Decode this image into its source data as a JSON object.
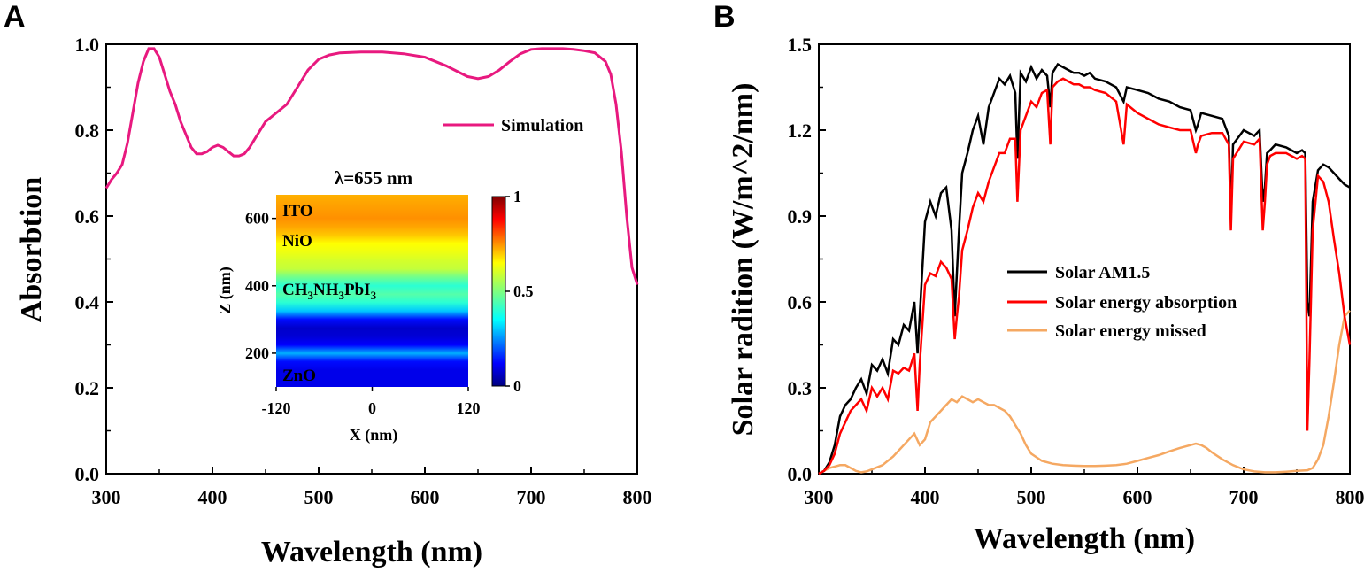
{
  "panel_a_letter": "A",
  "panel_b_letter": "B",
  "chart_data": [
    {
      "type": "line",
      "panel": "A",
      "xlabel": "Wavelength (nm)",
      "ylabel": "Absorbtion",
      "xlim": [
        300,
        800
      ],
      "ylim": [
        0.0,
        1.0
      ],
      "xticks": [
        300,
        400,
        500,
        600,
        700,
        800
      ],
      "xtick_labels": [
        "300",
        "400",
        "500",
        "600",
        "700",
        "800"
      ],
      "yticks": [
        0.0,
        0.2,
        0.4,
        0.6,
        0.8,
        1.0
      ],
      "ytick_labels": [
        "0.0",
        "0.2",
        "0.4",
        "0.6",
        "0.8",
        "1.0"
      ],
      "legend_position": "right",
      "series": [
        {
          "name": "Simulation",
          "color": "#e8197f",
          "x": [
            300,
            305,
            310,
            315,
            320,
            325,
            330,
            335,
            340,
            345,
            350,
            355,
            360,
            365,
            370,
            375,
            380,
            385,
            390,
            395,
            400,
            405,
            410,
            415,
            420,
            425,
            430,
            435,
            440,
            445,
            450,
            455,
            460,
            470,
            480,
            490,
            500,
            510,
            520,
            530,
            540,
            560,
            580,
            600,
            620,
            640,
            650,
            660,
            670,
            680,
            690,
            700,
            710,
            720,
            730,
            740,
            750,
            760,
            770,
            775,
            780,
            785,
            790,
            795,
            800
          ],
          "y": [
            0.665,
            0.685,
            0.7,
            0.72,
            0.77,
            0.84,
            0.91,
            0.96,
            0.99,
            0.99,
            0.97,
            0.93,
            0.89,
            0.86,
            0.82,
            0.79,
            0.76,
            0.745,
            0.745,
            0.75,
            0.76,
            0.765,
            0.76,
            0.75,
            0.74,
            0.74,
            0.745,
            0.76,
            0.78,
            0.8,
            0.82,
            0.83,
            0.84,
            0.86,
            0.9,
            0.94,
            0.965,
            0.975,
            0.98,
            0.981,
            0.982,
            0.982,
            0.978,
            0.97,
            0.95,
            0.925,
            0.92,
            0.925,
            0.94,
            0.96,
            0.978,
            0.988,
            0.99,
            0.99,
            0.99,
            0.988,
            0.985,
            0.98,
            0.96,
            0.93,
            0.86,
            0.75,
            0.6,
            0.48,
            0.44
          ]
        }
      ]
    },
    {
      "type": "heatmap",
      "panel": "A-inset",
      "title": "λ=655 nm",
      "xlabel": "X (nm)",
      "ylabel": "Z (nm)",
      "xlim": [
        -120,
        120
      ],
      "ylim": [
        100,
        670
      ],
      "xtick_labels": [
        "-120",
        "0",
        "120"
      ],
      "xticks": [
        -120,
        0,
        120
      ],
      "ytick_labels": [
        "200",
        "400",
        "600"
      ],
      "yticks": [
        200,
        400,
        600
      ],
      "colorbar_ticks": [
        0,
        0.5,
        1
      ],
      "colorbar_labels": [
        "0",
        "0.5",
        "1"
      ],
      "layers": [
        "ITO",
        "NiO",
        "CH3NH3PbI3",
        "ZnO"
      ],
      "layer_z": [
        640,
        575,
        410,
        118
      ],
      "profile_z": [
        100,
        125,
        150,
        175,
        200,
        225,
        250,
        275,
        300,
        325,
        350,
        375,
        400,
        425,
        450,
        475,
        500,
        525,
        550,
        575,
        600,
        625,
        650,
        670
      ],
      "profile_value": [
        0.1,
        0.1,
        0.1,
        0.13,
        0.28,
        0.12,
        0.08,
        0.07,
        0.13,
        0.3,
        0.4,
        0.45,
        0.4,
        0.48,
        0.58,
        0.6,
        0.63,
        0.65,
        0.7,
        0.73,
        0.75,
        0.74,
        0.73,
        0.72
      ]
    },
    {
      "type": "line",
      "panel": "B",
      "xlabel": "Wavelength (nm)",
      "ylabel": "Solar radition (W/m^2/nm)",
      "xlim": [
        300,
        800
      ],
      "ylim": [
        0.0,
        1.5
      ],
      "xticks": [
        300,
        400,
        500,
        600,
        700,
        800
      ],
      "xtick_labels": [
        "300",
        "400",
        "500",
        "600",
        "700",
        "800"
      ],
      "yticks": [
        0.0,
        0.3,
        0.6,
        0.9,
        1.2,
        1.5
      ],
      "ytick_labels": [
        "0.0",
        "0.3",
        "0.6",
        "0.9",
        "1.2",
        "1.5"
      ],
      "legend_position": "center-right",
      "series": [
        {
          "name": "Solar AM1.5",
          "color": "#000000",
          "x": [
            300,
            305,
            310,
            315,
            320,
            325,
            330,
            335,
            340,
            345,
            350,
            355,
            360,
            365,
            370,
            375,
            380,
            385,
            390,
            393,
            395,
            400,
            405,
            410,
            415,
            420,
            425,
            428,
            430,
            432,
            435,
            440,
            445,
            450,
            455,
            460,
            465,
            470,
            475,
            480,
            485,
            487,
            490,
            495,
            500,
            505,
            510,
            515,
            518,
            520,
            525,
            530,
            535,
            540,
            545,
            550,
            555,
            560,
            570,
            580,
            587,
            590,
            600,
            610,
            620,
            630,
            640,
            650,
            655,
            657,
            660,
            670,
            680,
            686,
            688,
            690,
            700,
            710,
            715,
            718,
            720,
            722,
            725,
            730,
            740,
            750,
            755,
            758,
            760,
            762,
            765,
            770,
            775,
            780,
            785,
            790,
            795,
            800
          ],
          "y": [
            0.0,
            0.01,
            0.04,
            0.1,
            0.2,
            0.24,
            0.26,
            0.3,
            0.33,
            0.28,
            0.38,
            0.36,
            0.4,
            0.35,
            0.47,
            0.45,
            0.52,
            0.5,
            0.6,
            0.42,
            0.55,
            0.88,
            0.95,
            0.9,
            0.98,
            1.0,
            0.85,
            0.55,
            0.7,
            0.85,
            1.05,
            1.12,
            1.2,
            1.25,
            1.15,
            1.28,
            1.33,
            1.38,
            1.36,
            1.39,
            1.33,
            1.1,
            1.4,
            1.37,
            1.42,
            1.38,
            1.41,
            1.39,
            1.28,
            1.4,
            1.43,
            1.42,
            1.41,
            1.4,
            1.4,
            1.39,
            1.4,
            1.38,
            1.37,
            1.35,
            1.3,
            1.35,
            1.34,
            1.33,
            1.31,
            1.3,
            1.28,
            1.27,
            1.2,
            1.22,
            1.26,
            1.25,
            1.24,
            1.18,
            0.9,
            1.15,
            1.2,
            1.18,
            1.2,
            0.95,
            1.0,
            1.12,
            1.13,
            1.15,
            1.14,
            1.12,
            1.13,
            1.12,
            0.6,
            0.55,
            0.95,
            1.06,
            1.08,
            1.07,
            1.05,
            1.03,
            1.01,
            1.0
          ]
        },
        {
          "name": "Solar energy absorption",
          "color": "#ff0000",
          "x": [
            300,
            305,
            310,
            315,
            320,
            325,
            330,
            335,
            340,
            345,
            350,
            355,
            360,
            365,
            370,
            375,
            380,
            385,
            390,
            393,
            395,
            400,
            405,
            410,
            415,
            420,
            425,
            428,
            430,
            432,
            435,
            440,
            445,
            450,
            455,
            460,
            465,
            470,
            475,
            480,
            485,
            487,
            490,
            495,
            500,
            505,
            510,
            515,
            518,
            520,
            525,
            530,
            535,
            540,
            545,
            550,
            555,
            560,
            570,
            580,
            587,
            590,
            600,
            610,
            620,
            630,
            640,
            650,
            655,
            657,
            660,
            670,
            680,
            686,
            688,
            690,
            700,
            710,
            715,
            718,
            720,
            722,
            725,
            730,
            740,
            750,
            755,
            758,
            760,
            762,
            765,
            770,
            775,
            780,
            785,
            790,
            795,
            800
          ],
          "y": [
            0.0,
            0.01,
            0.03,
            0.07,
            0.14,
            0.18,
            0.22,
            0.24,
            0.26,
            0.22,
            0.3,
            0.27,
            0.3,
            0.26,
            0.36,
            0.35,
            0.37,
            0.36,
            0.42,
            0.22,
            0.38,
            0.66,
            0.7,
            0.69,
            0.74,
            0.72,
            0.68,
            0.47,
            0.55,
            0.62,
            0.78,
            0.85,
            0.93,
            0.98,
            0.95,
            1.02,
            1.07,
            1.12,
            1.12,
            1.17,
            1.17,
            0.95,
            1.2,
            1.25,
            1.3,
            1.28,
            1.33,
            1.34,
            1.15,
            1.35,
            1.37,
            1.38,
            1.37,
            1.36,
            1.36,
            1.35,
            1.35,
            1.34,
            1.33,
            1.3,
            1.15,
            1.29,
            1.26,
            1.24,
            1.22,
            1.21,
            1.2,
            1.2,
            1.12,
            1.15,
            1.18,
            1.19,
            1.19,
            1.15,
            0.85,
            1.1,
            1.16,
            1.15,
            1.17,
            0.85,
            0.95,
            1.08,
            1.11,
            1.12,
            1.12,
            1.1,
            1.11,
            1.1,
            0.15,
            0.4,
            0.85,
            1.04,
            1.02,
            0.95,
            0.82,
            0.7,
            0.55,
            0.45
          ]
        },
        {
          "name": "Solar energy missed",
          "color": "#f5a862",
          "x": [
            300,
            305,
            310,
            315,
            320,
            325,
            330,
            335,
            340,
            345,
            350,
            360,
            370,
            380,
            390,
            395,
            400,
            405,
            410,
            415,
            420,
            425,
            430,
            435,
            440,
            445,
            450,
            455,
            460,
            465,
            470,
            475,
            480,
            485,
            490,
            495,
            500,
            510,
            520,
            530,
            540,
            550,
            560,
            570,
            580,
            590,
            600,
            610,
            620,
            630,
            640,
            650,
            655,
            660,
            665,
            670,
            680,
            690,
            700,
            710,
            720,
            730,
            740,
            750,
            760,
            765,
            770,
            775,
            780,
            785,
            790,
            795,
            800
          ],
          "y": [
            0.0,
            0.01,
            0.02,
            0.025,
            0.03,
            0.03,
            0.02,
            0.01,
            0.005,
            0.008,
            0.015,
            0.03,
            0.06,
            0.1,
            0.14,
            0.1,
            0.12,
            0.18,
            0.2,
            0.22,
            0.24,
            0.26,
            0.25,
            0.27,
            0.26,
            0.25,
            0.26,
            0.25,
            0.24,
            0.24,
            0.23,
            0.22,
            0.2,
            0.17,
            0.14,
            0.1,
            0.07,
            0.045,
            0.035,
            0.03,
            0.028,
            0.027,
            0.027,
            0.028,
            0.03,
            0.035,
            0.045,
            0.055,
            0.065,
            0.078,
            0.09,
            0.1,
            0.105,
            0.1,
            0.09,
            0.075,
            0.05,
            0.03,
            0.015,
            0.008,
            0.005,
            0.005,
            0.007,
            0.01,
            0.012,
            0.02,
            0.05,
            0.1,
            0.2,
            0.32,
            0.45,
            0.55,
            0.57
          ]
        }
      ]
    }
  ]
}
